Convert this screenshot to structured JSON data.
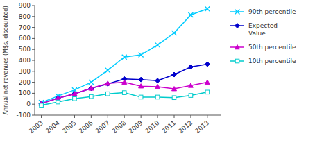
{
  "chart_data": {
    "type": "line",
    "x": [
      2003,
      2004,
      2005,
      2006,
      2007,
      2008,
      2009,
      2010,
      2011,
      2012,
      2013
    ],
    "xlim": [
      2002.6,
      2013.8
    ],
    "xticks": [
      2003,
      2004,
      2005,
      2006,
      2007,
      2008,
      2009,
      2010,
      2011,
      2012,
      2013
    ],
    "ylabel": "Annual net revenues (M$s, discounted)",
    "ylim": [
      -100,
      900
    ],
    "yticks": [
      -100,
      0,
      100,
      200,
      300,
      400,
      500,
      600,
      700,
      800,
      900
    ],
    "grid": false,
    "legend": "right",
    "series": [
      {
        "name": "90th percentile",
        "color": "#00ccff",
        "marker": "x",
        "values": [
          15,
          75,
          130,
          200,
          310,
          430,
          450,
          540,
          650,
          815,
          870
        ]
      },
      {
        "name": "Expected\nValue",
        "color": "#0000cc",
        "marker": "diamond",
        "values": [
          5,
          55,
          95,
          145,
          185,
          230,
          225,
          215,
          270,
          340,
          365
        ]
      },
      {
        "name": "50th percentile",
        "color": "#cc00cc",
        "marker": "triangle",
        "values": [
          5,
          55,
          95,
          145,
          190,
          200,
          165,
          160,
          140,
          170,
          200
        ]
      },
      {
        "name": "10th percentile",
        "color": "#00cccc",
        "marker": "open-square",
        "values": [
          -10,
          20,
          50,
          70,
          95,
          105,
          65,
          65,
          60,
          80,
          110
        ]
      }
    ]
  }
}
